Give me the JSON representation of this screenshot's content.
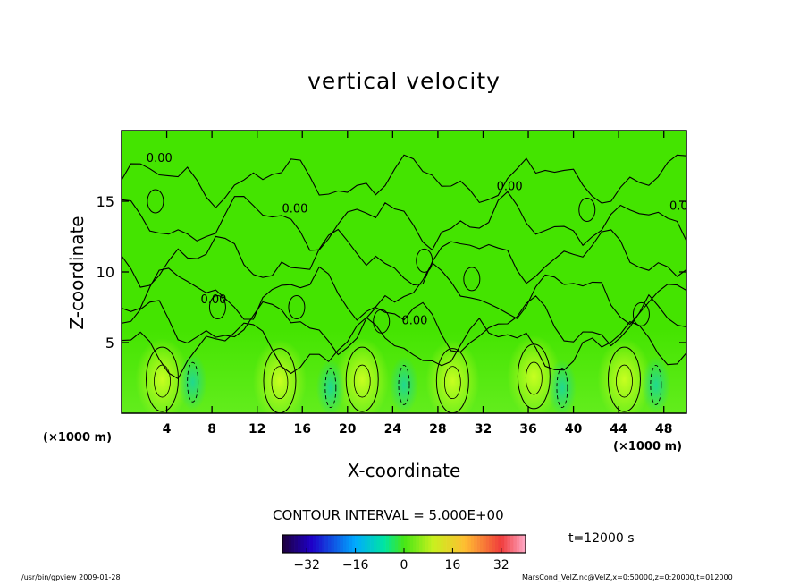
{
  "chart_data": {
    "type": "heatmap",
    "title": "vertical velocity",
    "xlabel": "X-coordinate",
    "ylabel": "Z-coordinate",
    "x_unit_left": "(×1000 m)",
    "x_unit_right": "(×1000 m)",
    "xlim": [
      0,
      50
    ],
    "ylim": [
      0,
      20
    ],
    "x_ticks": [
      4,
      8,
      12,
      16,
      20,
      24,
      28,
      32,
      36,
      40,
      44,
      48
    ],
    "y_ticks": [
      5,
      10,
      15
    ],
    "contour_interval_label": "CONTOUR INTERVAL = 5.000E+00",
    "contour_label": "0.00",
    "colorbar": {
      "min": -40,
      "max": 40,
      "ticks": [
        -32,
        -16,
        0,
        16,
        32
      ],
      "tick_labels": [
        "−32",
        "−16",
        "0",
        "16",
        "32"
      ]
    },
    "updrafts": [
      {
        "x": 3.6,
        "z": 2.4,
        "w": 14
      },
      {
        "x": 14.0,
        "z": 2.3,
        "w": 9
      },
      {
        "x": 21.3,
        "z": 2.4,
        "w": 12
      },
      {
        "x": 29.3,
        "z": 2.3,
        "w": 8
      },
      {
        "x": 36.5,
        "z": 2.6,
        "w": 11
      },
      {
        "x": 44.5,
        "z": 2.4,
        "w": 12
      }
    ],
    "downdrafts": [
      {
        "x": 6.3,
        "z": 2.2,
        "w": -7
      },
      {
        "x": 18.5,
        "z": 1.8,
        "w": -5
      },
      {
        "x": 25.0,
        "z": 2.0,
        "w": -5
      },
      {
        "x": 39.0,
        "z": 1.8,
        "w": -6
      },
      {
        "x": 47.3,
        "z": 2.0,
        "w": -10
      }
    ],
    "grid": false,
    "legend": "bottom-colorbar"
  },
  "time_label": "t=12000 s",
  "footer_left": "/usr/bin/gpview   2009-01-28",
  "footer_right": "MarsCond_VelZ.nc@VelZ,x=0:50000,z=0:20000,t=012000",
  "colors": {
    "background_field": "#44e400",
    "updraft": "#c8ff20",
    "downdraft": "#20d890",
    "contour": "#000000"
  }
}
